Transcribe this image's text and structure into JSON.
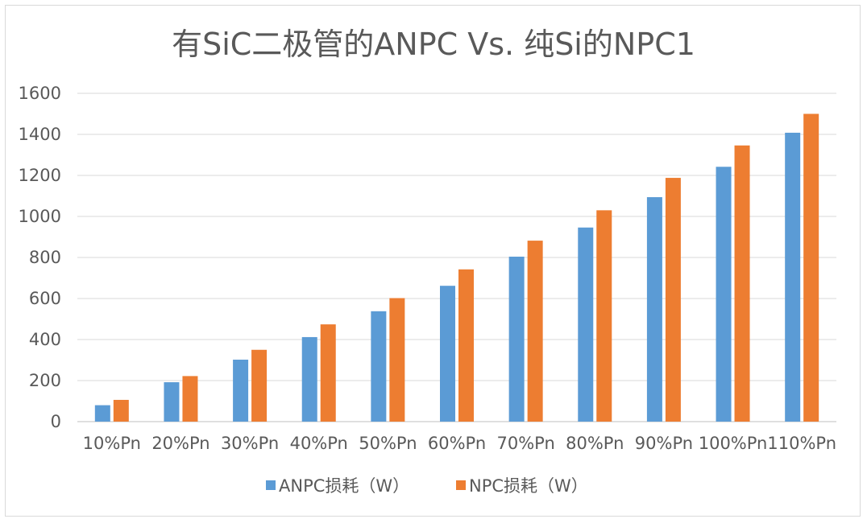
{
  "chart_data": {
    "type": "bar",
    "title": "有SiC二极管的ANPC Vs. 纯Si的NPC1",
    "categories": [
      "10%Pn",
      "20%Pn",
      "30%Pn",
      "40%Pn",
      "50%Pn",
      "60%Pn",
      "70%Pn",
      "80%Pn",
      "90%Pn",
      "100%Pn",
      "110%Pn"
    ],
    "series": [
      {
        "name": "ANPC损耗（W）",
        "color": "#5b9bd5",
        "values": [
          80,
          192,
          302,
          412,
          538,
          662,
          804,
          946,
          1094,
          1242,
          1408
        ]
      },
      {
        "name": "NPC损耗（W）",
        "color": "#ed7d31",
        "values": [
          106,
          222,
          350,
          474,
          602,
          742,
          882,
          1030,
          1188,
          1346,
          1500
        ]
      }
    ],
    "ylim": [
      0,
      1600
    ],
    "yticks": [
      0,
      200,
      400,
      600,
      800,
      1000,
      1200,
      1400,
      1600
    ],
    "grid": true,
    "legend": "bottom"
  }
}
